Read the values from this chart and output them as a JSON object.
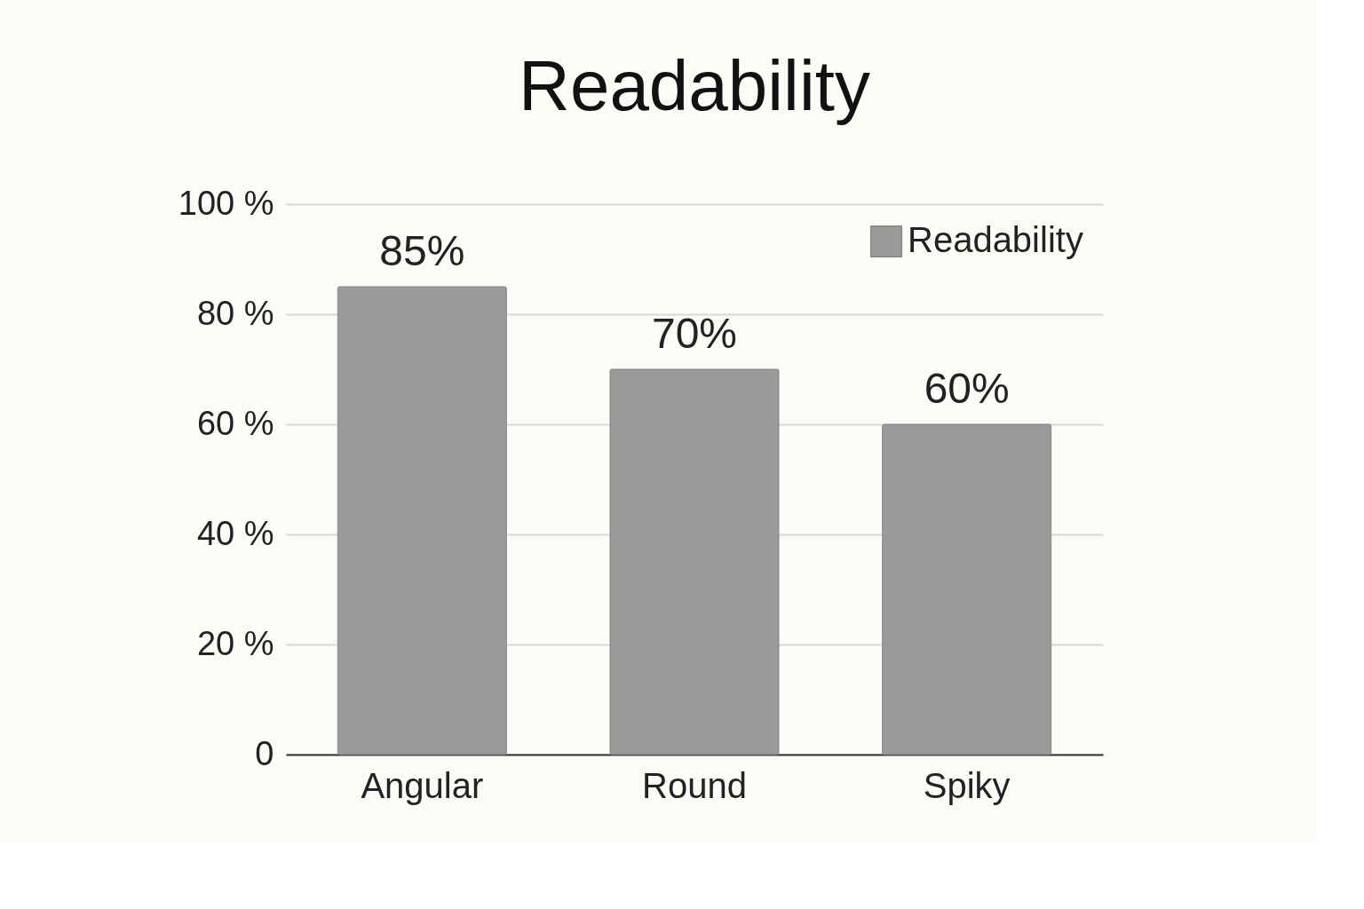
{
  "chart_data": {
    "type": "bar",
    "title": "Readability",
    "categories": [
      "Angular",
      "Round",
      "Spiky"
    ],
    "series": [
      {
        "name": "Readability",
        "color": "#9a9a9c",
        "values": [
          85,
          70,
          60
        ]
      }
    ],
    "value_labels": [
      "85%",
      "70%",
      "60%"
    ],
    "ylim": [
      0,
      100
    ],
    "yticks": [
      {
        "value": 0,
        "label": "0"
      },
      {
        "value": 20,
        "label": "20 %"
      },
      {
        "value": 40,
        "label": "40 %"
      },
      {
        "value": 60,
        "label": "60 %"
      },
      {
        "value": 80,
        "label": "80 %"
      },
      {
        "value": 100,
        "label": "100 %"
      }
    ],
    "grid": "y",
    "legend": "top right"
  }
}
